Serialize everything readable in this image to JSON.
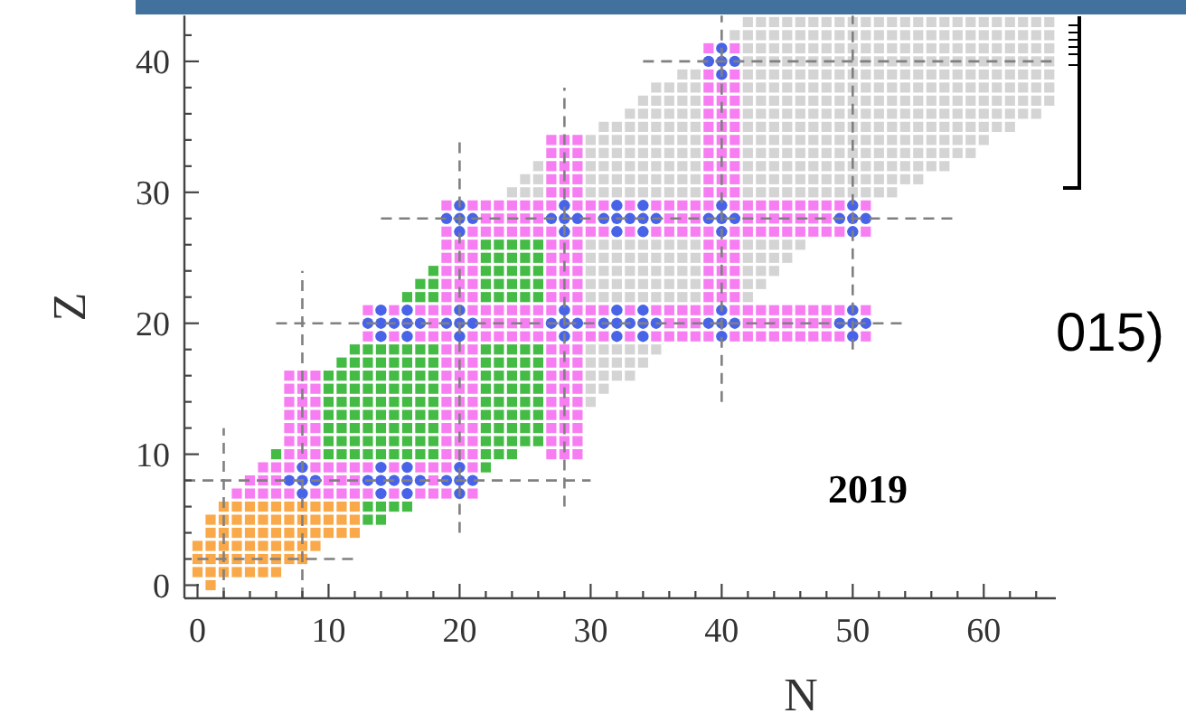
{
  "chart_data": {
    "type": "scatter",
    "xlabel": "N",
    "ylabel": "Z",
    "xlim": [
      -1,
      65.5
    ],
    "ylim": [
      -1,
      43.5
    ],
    "xticks": [
      0,
      {
        "value": 2,
        "label": null
      },
      {
        "value": 4,
        "label": null
      },
      {
        "value": 6,
        "label": null
      },
      {
        "value": 8,
        "label": null
      },
      10,
      {
        "value": 12,
        "label": null
      },
      {
        "value": 14,
        "label": null
      },
      {
        "value": 16,
        "label": null
      },
      {
        "value": 18,
        "label": null
      },
      20,
      {
        "value": 22,
        "label": null
      },
      {
        "value": 24,
        "label": null
      },
      {
        "value": 26,
        "label": null
      },
      {
        "value": 28,
        "label": null
      },
      30,
      {
        "value": 32,
        "label": null
      },
      {
        "value": 34,
        "label": null
      },
      {
        "value": 36,
        "label": null
      },
      {
        "value": 38,
        "label": null
      },
      40,
      {
        "value": 42,
        "label": null
      },
      {
        "value": 44,
        "label": null
      },
      {
        "value": 46,
        "label": null
      },
      {
        "value": 48,
        "label": null
      },
      50,
      {
        "value": 52,
        "label": null
      },
      {
        "value": 54,
        "label": null
      },
      {
        "value": 56,
        "label": null
      },
      {
        "value": 58,
        "label": null
      },
      60,
      {
        "value": 62,
        "label": null
      },
      {
        "value": 64,
        "label": null
      }
    ],
    "yticks": [
      0,
      {
        "value": 2,
        "label": null
      },
      {
        "value": 4,
        "label": null
      },
      {
        "value": 6,
        "label": null
      },
      {
        "value": 8,
        "label": null
      },
      10,
      {
        "value": 12,
        "label": null
      },
      {
        "value": 14,
        "label": null
      },
      {
        "value": 16,
        "label": null
      },
      {
        "value": 18,
        "label": null
      },
      20,
      {
        "value": 22,
        "label": null
      },
      {
        "value": 24,
        "label": null
      },
      {
        "value": 26,
        "label": null
      },
      {
        "value": 28,
        "label": null
      },
      30,
      {
        "value": 32,
        "label": null
      },
      {
        "value": 34,
        "label": null
      },
      {
        "value": 36,
        "label": null
      },
      {
        "value": 38,
        "label": null
      },
      40,
      {
        "value": 42,
        "label": null
      }
    ],
    "annotations": [
      "2019",
      "015)"
    ],
    "series": [
      {
        "type": "scatter",
        "marker": "square",
        "color": "#d4d4d4",
        "x": [
          30,
          30,
          31,
          30,
          31,
          32,
          33,
          30,
          31,
          32,
          33,
          34,
          30,
          31,
          32,
          33,
          34,
          35,
          30,
          31,
          32,
          33,
          34,
          35,
          36,
          37,
          38,
          42,
          30,
          31,
          32,
          33,
          34,
          35,
          36,
          37,
          38,
          42,
          43,
          30,
          31,
          32,
          33,
          34,
          35,
          36,
          37,
          38,
          42,
          43,
          44,
          30,
          31,
          32,
          33,
          34,
          35,
          36,
          37,
          38,
          42,
          43,
          44,
          45,
          30,
          31,
          32,
          33,
          34,
          35,
          36,
          37,
          38,
          42,
          43,
          44,
          45,
          46,
          24,
          25,
          26,
          30,
          31,
          32,
          33,
          34,
          35,
          36,
          37,
          38,
          42,
          43,
          44,
          45,
          46,
          47,
          48,
          49,
          50,
          51,
          52,
          53,
          25,
          26,
          30,
          31,
          32,
          33,
          34,
          35,
          36,
          37,
          38,
          42,
          43,
          44,
          45,
          46,
          47,
          48,
          49,
          50,
          51,
          52,
          53,
          54,
          55,
          26,
          30,
          31,
          32,
          33,
          34,
          35,
          36,
          37,
          38,
          42,
          43,
          44,
          45,
          46,
          47,
          48,
          49,
          50,
          51,
          52,
          53,
          54,
          55,
          56,
          57,
          30,
          31,
          32,
          33,
          34,
          35,
          36,
          37,
          38,
          42,
          43,
          44,
          45,
          46,
          47,
          48,
          49,
          50,
          51,
          52,
          53,
          54,
          55,
          56,
          57,
          58,
          59,
          30,
          31,
          32,
          33,
          34,
          35,
          36,
          37,
          38,
          42,
          43,
          44,
          45,
          46,
          47,
          48,
          49,
          50,
          51,
          52,
          53,
          54,
          55,
          56,
          57,
          58,
          59,
          60,
          31,
          32,
          33,
          34,
          35,
          36,
          37,
          38,
          42,
          43,
          44,
          45,
          46,
          47,
          48,
          49,
          50,
          51,
          52,
          53,
          54,
          55,
          56,
          57,
          58,
          59,
          60,
          61,
          62,
          33,
          34,
          35,
          36,
          37,
          38,
          42,
          43,
          44,
          45,
          46,
          47,
          48,
          49,
          50,
          51,
          52,
          53,
          54,
          55,
          56,
          57,
          58,
          59,
          60,
          61,
          62,
          63,
          64,
          34,
          35,
          36,
          37,
          38,
          42,
          43,
          44,
          45,
          46,
          47,
          48,
          49,
          50,
          51,
          52,
          53,
          54,
          55,
          56,
          57,
          58,
          59,
          60,
          61,
          62,
          63,
          64,
          65,
          35,
          36,
          37,
          38,
          42,
          43,
          44,
          45,
          46,
          47,
          48,
          49,
          50,
          51,
          52,
          53,
          54,
          55,
          56,
          57,
          58,
          59,
          60,
          61,
          62,
          63,
          64,
          65,
          37,
          38,
          42,
          43,
          44,
          45,
          46,
          47,
          48,
          49,
          50,
          51,
          52,
          53,
          54,
          55,
          56,
          57,
          58,
          59,
          60,
          61,
          62,
          63,
          64,
          65,
          42,
          43,
          44,
          45,
          46,
          47,
          48,
          49,
          50,
          51,
          52,
          53,
          54,
          55,
          56,
          57,
          58,
          59,
          60,
          61,
          62,
          63,
          64,
          65,
          42,
          43,
          44,
          45,
          46,
          47,
          48,
          49,
          50,
          51,
          52,
          53,
          54,
          55,
          56,
          57,
          58,
          59,
          60,
          61,
          62,
          63,
          64,
          65,
          41,
          42,
          43,
          44,
          45,
          46,
          47,
          48,
          49,
          50,
          51,
          52,
          53,
          54,
          55,
          56,
          57,
          58,
          59,
          60,
          61,
          62,
          63,
          64,
          65,
          42,
          43,
          44,
          45,
          46,
          47,
          48,
          49,
          50,
          51,
          52,
          53,
          54,
          55,
          56,
          57,
          58,
          59,
          60,
          61,
          62,
          63,
          64,
          65
        ],
        "values": [
          14,
          15,
          15,
          16,
          16,
          16,
          16,
          17,
          17,
          17,
          17,
          17,
          18,
          18,
          18,
          18,
          18,
          18,
          22,
          22,
          22,
          22,
          22,
          22,
          22,
          22,
          22,
          22,
          23,
          23,
          23,
          23,
          23,
          23,
          23,
          23,
          23,
          23,
          23,
          24,
          24,
          24,
          24,
          24,
          24,
          24,
          24,
          24,
          24,
          24,
          24,
          25,
          25,
          25,
          25,
          25,
          25,
          25,
          25,
          25,
          25,
          25,
          25,
          25,
          26,
          26,
          26,
          26,
          26,
          26,
          26,
          26,
          26,
          26,
          26,
          26,
          26,
          26,
          30,
          30,
          30,
          30,
          30,
          30,
          30,
          30,
          30,
          30,
          30,
          30,
          30,
          30,
          30,
          30,
          30,
          30,
          30,
          30,
          30,
          30,
          30,
          30,
          31,
          31,
          31,
          31,
          31,
          31,
          31,
          31,
          31,
          31,
          31,
          31,
          31,
          31,
          31,
          31,
          31,
          31,
          31,
          31,
          31,
          31,
          31,
          31,
          31,
          32,
          32,
          32,
          32,
          32,
          32,
          32,
          32,
          32,
          32,
          32,
          32,
          32,
          32,
          32,
          32,
          32,
          32,
          32,
          32,
          32,
          32,
          32,
          32,
          32,
          32,
          33,
          33,
          33,
          33,
          33,
          33,
          33,
          33,
          33,
          33,
          33,
          33,
          33,
          33,
          33,
          33,
          33,
          33,
          33,
          33,
          33,
          33,
          33,
          33,
          33,
          33,
          33,
          34,
          34,
          34,
          34,
          34,
          34,
          34,
          34,
          34,
          34,
          34,
          34,
          34,
          34,
          34,
          34,
          34,
          34,
          34,
          34,
          34,
          34,
          34,
          34,
          34,
          34,
          34,
          34,
          35,
          35,
          35,
          35,
          35,
          35,
          35,
          35,
          35,
          35,
          35,
          35,
          35,
          35,
          35,
          35,
          35,
          35,
          35,
          35,
          35,
          35,
          35,
          35,
          35,
          35,
          35,
          35,
          35,
          36,
          36,
          36,
          36,
          36,
          36,
          36,
          36,
          36,
          36,
          36,
          36,
          36,
          36,
          36,
          36,
          36,
          36,
          36,
          36,
          36,
          36,
          36,
          36,
          36,
          36,
          36,
          36,
          36,
          37,
          37,
          37,
          37,
          37,
          37,
          37,
          37,
          37,
          37,
          37,
          37,
          37,
          37,
          37,
          37,
          37,
          37,
          37,
          37,
          37,
          37,
          37,
          37,
          37,
          37,
          37,
          37,
          37,
          38,
          38,
          38,
          38,
          38,
          38,
          38,
          38,
          38,
          38,
          38,
          38,
          38,
          38,
          38,
          38,
          38,
          38,
          38,
          38,
          38,
          38,
          38,
          38,
          38,
          38,
          38,
          38,
          39,
          39,
          39,
          39,
          39,
          39,
          39,
          39,
          39,
          39,
          39,
          39,
          39,
          39,
          39,
          39,
          39,
          39,
          39,
          39,
          39,
          39,
          39,
          39,
          39,
          39,
          40,
          40,
          40,
          40,
          40,
          40,
          40,
          40,
          40,
          40,
          40,
          40,
          40,
          40,
          40,
          40,
          40,
          40,
          40,
          40,
          40,
          40,
          40,
          40,
          41,
          41,
          41,
          41,
          41,
          41,
          41,
          41,
          41,
          41,
          41,
          41,
          41,
          41,
          41,
          41,
          41,
          41,
          41,
          41,
          41,
          41,
          41,
          41,
          42,
          42,
          42,
          42,
          42,
          42,
          42,
          42,
          42,
          42,
          42,
          42,
          42,
          42,
          42,
          42,
          42,
          42,
          42,
          42,
          42,
          42,
          42,
          42,
          42,
          43,
          43,
          43,
          43,
          43,
          43,
          43,
          43,
          43,
          43,
          43,
          43,
          43,
          43,
          43,
          43,
          43,
          43,
          43,
          43,
          43,
          43,
          43,
          43
        ]
      },
      {
        "type": "scatter",
        "marker": "square",
        "color": "#44bb44",
        "x": [
          13,
          14,
          13,
          14,
          15,
          16,
          22,
          6,
          10,
          11,
          12,
          13,
          14,
          15,
          16,
          17,
          18,
          22,
          23,
          24,
          10,
          11,
          12,
          13,
          14,
          15,
          16,
          17,
          18,
          22,
          23,
          24,
          25,
          26,
          10,
          11,
          12,
          13,
          14,
          15,
          16,
          17,
          18,
          22,
          23,
          24,
          25,
          26,
          10,
          11,
          12,
          13,
          14,
          15,
          16,
          17,
          18,
          22,
          23,
          24,
          25,
          26,
          10,
          11,
          12,
          13,
          14,
          15,
          16,
          17,
          18,
          22,
          23,
          24,
          25,
          26,
          10,
          11,
          12,
          13,
          14,
          15,
          16,
          17,
          18,
          22,
          23,
          24,
          25,
          26,
          10,
          11,
          12,
          13,
          14,
          15,
          16,
          17,
          18,
          22,
          23,
          24,
          25,
          26,
          11,
          12,
          13,
          14,
          15,
          16,
          17,
          18,
          22,
          23,
          24,
          25,
          26,
          12,
          13,
          14,
          15,
          16,
          17,
          18,
          22,
          23,
          24,
          25,
          26,
          16,
          17,
          18,
          22,
          23,
          24,
          25,
          26,
          17,
          18,
          22,
          23,
          24,
          25,
          26,
          18,
          22,
          23,
          24,
          25,
          26,
          22,
          23,
          24,
          25,
          26,
          22,
          23,
          24,
          25,
          26
        ],
        "values": [
          5,
          5,
          6,
          6,
          6,
          6,
          9,
          10,
          10,
          10,
          10,
          10,
          10,
          10,
          10,
          10,
          10,
          10,
          10,
          10,
          11,
          11,
          11,
          11,
          11,
          11,
          11,
          11,
          11,
          11,
          11,
          11,
          11,
          11,
          12,
          12,
          12,
          12,
          12,
          12,
          12,
          12,
          12,
          12,
          12,
          12,
          12,
          12,
          13,
          13,
          13,
          13,
          13,
          13,
          13,
          13,
          13,
          13,
          13,
          13,
          13,
          13,
          14,
          14,
          14,
          14,
          14,
          14,
          14,
          14,
          14,
          14,
          14,
          14,
          14,
          14,
          15,
          15,
          15,
          15,
          15,
          15,
          15,
          15,
          15,
          15,
          15,
          15,
          15,
          15,
          16,
          16,
          16,
          16,
          16,
          16,
          16,
          16,
          16,
          16,
          16,
          16,
          16,
          16,
          17,
          17,
          17,
          17,
          17,
          17,
          17,
          17,
          17,
          17,
          17,
          17,
          17,
          18,
          18,
          18,
          18,
          18,
          18,
          18,
          18,
          18,
          18,
          18,
          18,
          22,
          22,
          22,
          22,
          22,
          22,
          22,
          22,
          23,
          23,
          23,
          23,
          23,
          23,
          23,
          24,
          24,
          24,
          24,
          24,
          24,
          25,
          25,
          25,
          25,
          25,
          26,
          26,
          26,
          26,
          26
        ]
      },
      {
        "type": "scatter",
        "marker": "square",
        "color": "#f9a84a",
        "x": [
          1,
          0,
          1,
          2,
          3,
          4,
          5,
          6,
          0,
          1,
          2,
          3,
          4,
          5,
          6,
          7,
          8,
          0,
          1,
          2,
          3,
          4,
          5,
          6,
          7,
          8,
          9,
          1,
          2,
          3,
          4,
          5,
          6,
          7,
          8,
          9,
          10,
          11,
          12,
          1,
          2,
          3,
          4,
          5,
          6,
          7,
          8,
          9,
          10,
          11,
          12,
          2,
          3,
          4,
          5,
          6,
          7,
          8,
          9,
          10,
          11,
          12
        ],
        "values": [
          0,
          1,
          1,
          1,
          1,
          1,
          1,
          1,
          2,
          2,
          2,
          2,
          2,
          2,
          2,
          2,
          2,
          3,
          3,
          3,
          3,
          3,
          3,
          3,
          3,
          3,
          3,
          4,
          4,
          4,
          4,
          4,
          4,
          4,
          4,
          4,
          4,
          4,
          4,
          5,
          5,
          5,
          5,
          5,
          5,
          5,
          5,
          5,
          5,
          5,
          5,
          6,
          6,
          6,
          6,
          6,
          6,
          6,
          6,
          6,
          6,
          6
        ]
      },
      {
        "type": "scatter",
        "marker": "square",
        "color": "#f77ef2",
        "x": [
          3,
          4,
          5,
          6,
          7,
          9,
          10,
          11,
          12,
          13,
          15,
          17,
          18,
          19,
          21,
          4,
          5,
          6,
          10,
          11,
          12,
          18,
          5,
          6,
          7,
          9,
          10,
          11,
          12,
          13,
          15,
          17,
          18,
          19,
          21,
          7,
          8,
          9,
          19,
          20,
          21,
          27,
          28,
          29,
          7,
          8,
          9,
          19,
          20,
          21,
          27,
          28,
          29,
          7,
          8,
          9,
          19,
          20,
          21,
          27,
          28,
          29,
          7,
          8,
          9,
          19,
          20,
          21,
          27,
          28,
          29,
          7,
          8,
          9,
          19,
          20,
          21,
          27,
          28,
          29,
          7,
          8,
          9,
          19,
          20,
          21,
          27,
          28,
          29,
          7,
          8,
          9,
          19,
          20,
          21,
          27,
          28,
          29,
          19,
          20,
          21,
          27,
          28,
          29,
          19,
          20,
          21,
          27,
          28,
          29,
          13,
          15,
          17,
          18,
          19,
          21,
          22,
          23,
          24,
          25,
          26,
          27,
          29,
          30,
          31,
          33,
          35,
          36,
          37,
          38,
          39,
          41,
          42,
          43,
          44,
          45,
          46,
          47,
          48,
          49,
          51,
          18,
          22,
          23,
          24,
          25,
          26,
          30,
          36,
          37,
          38,
          42,
          43,
          44,
          45,
          46,
          47,
          48,
          13,
          15,
          17,
          18,
          19,
          21,
          22,
          23,
          24,
          25,
          26,
          27,
          29,
          30,
          31,
          33,
          35,
          36,
          37,
          38,
          39,
          41,
          42,
          43,
          44,
          45,
          46,
          47,
          48,
          49,
          51,
          19,
          20,
          21,
          27,
          28,
          29,
          39,
          40,
          41,
          19,
          20,
          21,
          27,
          28,
          29,
          39,
          40,
          41,
          19,
          20,
          21,
          27,
          28,
          29,
          39,
          40,
          41,
          19,
          20,
          21,
          27,
          28,
          29,
          39,
          40,
          41,
          19,
          20,
          21,
          27,
          28,
          29,
          39,
          40,
          41,
          19,
          21,
          22,
          23,
          24,
          25,
          26,
          27,
          29,
          30,
          31,
          33,
          35,
          36,
          37,
          38,
          39,
          41,
          42,
          43,
          44,
          45,
          46,
          47,
          48,
          49,
          51,
          22,
          23,
          24,
          25,
          26,
          30,
          36,
          37,
          38,
          42,
          43,
          44,
          45,
          46,
          47,
          48,
          19,
          21,
          22,
          23,
          24,
          25,
          26,
          27,
          29,
          30,
          31,
          33,
          35,
          36,
          37,
          38,
          39,
          41,
          42,
          43,
          44,
          45,
          46,
          47,
          48,
          49,
          51,
          27,
          28,
          29,
          39,
          40,
          41,
          27,
          28,
          29,
          39,
          40,
          41,
          27,
          28,
          29,
          39,
          40,
          41,
          27,
          28,
          29,
          39,
          40,
          41,
          27,
          28,
          29,
          39,
          40,
          41,
          39,
          40,
          41,
          39,
          40,
          41,
          39,
          40,
          41,
          39,
          40,
          41,
          39,
          41,
          39,
          41
        ],
        "values": [
          7,
          7,
          7,
          7,
          7,
          7,
          7,
          7,
          7,
          7,
          7,
          7,
          7,
          7,
          7,
          8,
          8,
          8,
          8,
          8,
          8,
          8,
          9,
          9,
          9,
          9,
          9,
          9,
          9,
          9,
          9,
          9,
          9,
          9,
          9,
          10,
          10,
          10,
          10,
          10,
          10,
          10,
          10,
          10,
          11,
          11,
          11,
          11,
          11,
          11,
          11,
          11,
          11,
          12,
          12,
          12,
          12,
          12,
          12,
          12,
          12,
          12,
          13,
          13,
          13,
          13,
          13,
          13,
          13,
          13,
          13,
          14,
          14,
          14,
          14,
          14,
          14,
          14,
          14,
          14,
          15,
          15,
          15,
          15,
          15,
          15,
          15,
          15,
          15,
          16,
          16,
          16,
          16,
          16,
          16,
          16,
          16,
          16,
          17,
          17,
          17,
          17,
          17,
          17,
          18,
          18,
          18,
          18,
          18,
          18,
          19,
          19,
          19,
          19,
          19,
          19,
          19,
          19,
          19,
          19,
          19,
          19,
          19,
          19,
          19,
          19,
          19,
          19,
          19,
          19,
          19,
          19,
          19,
          19,
          19,
          19,
          19,
          19,
          19,
          19,
          19,
          20,
          20,
          20,
          20,
          20,
          20,
          20,
          20,
          20,
          20,
          20,
          20,
          20,
          20,
          20,
          20,
          20,
          21,
          21,
          21,
          21,
          21,
          21,
          21,
          21,
          21,
          21,
          21,
          21,
          21,
          21,
          21,
          21,
          21,
          21,
          21,
          21,
          21,
          21,
          21,
          21,
          21,
          21,
          21,
          21,
          21,
          21,
          21,
          22,
          22,
          22,
          22,
          22,
          22,
          22,
          22,
          22,
          23,
          23,
          23,
          23,
          23,
          23,
          23,
          23,
          23,
          24,
          24,
          24,
          24,
          24,
          24,
          24,
          24,
          24,
          25,
          25,
          25,
          25,
          25,
          25,
          25,
          25,
          25,
          26,
          26,
          26,
          26,
          26,
          26,
          26,
          26,
          26,
          27,
          27,
          27,
          27,
          27,
          27,
          27,
          27,
          27,
          27,
          27,
          27,
          27,
          27,
          27,
          27,
          27,
          27,
          27,
          27,
          27,
          27,
          27,
          27,
          27,
          27,
          27,
          28,
          28,
          28,
          28,
          28,
          28,
          28,
          28,
          28,
          28,
          28,
          28,
          28,
          28,
          28,
          28,
          29,
          29,
          29,
          29,
          29,
          29,
          29,
          29,
          29,
          29,
          29,
          29,
          29,
          29,
          29,
          29,
          29,
          29,
          29,
          29,
          29,
          29,
          29,
          29,
          29,
          29,
          29,
          30,
          30,
          30,
          30,
          30,
          30,
          31,
          31,
          31,
          31,
          31,
          31,
          32,
          32,
          32,
          32,
          32,
          32,
          33,
          33,
          33,
          33,
          33,
          33,
          34,
          34,
          34,
          34,
          34,
          34,
          35,
          35,
          35,
          36,
          36,
          36,
          37,
          37,
          37,
          38,
          38,
          38,
          39,
          39,
          41,
          41
        ]
      },
      {
        "type": "scatter",
        "marker": "circle",
        "color": "#4863e8",
        "x": [
          8,
          14,
          16,
          20,
          7,
          8,
          9,
          13,
          14,
          15,
          16,
          17,
          19,
          20,
          21,
          8,
          14,
          16,
          20,
          14,
          16,
          20,
          28,
          32,
          34,
          40,
          50,
          13,
          14,
          15,
          16,
          17,
          19,
          20,
          21,
          27,
          28,
          29,
          31,
          32,
          33,
          34,
          35,
          39,
          40,
          41,
          49,
          50,
          51,
          14,
          16,
          20,
          28,
          32,
          34,
          40,
          50,
          20,
          28,
          32,
          34,
          40,
          50,
          19,
          20,
          21,
          27,
          28,
          29,
          31,
          32,
          33,
          34,
          35,
          39,
          40,
          41,
          49,
          50,
          51,
          20,
          28,
          32,
          34,
          40,
          50,
          40,
          39,
          40,
          41,
          40
        ],
        "values": [
          7,
          7,
          7,
          7,
          8,
          8,
          8,
          8,
          8,
          8,
          8,
          8,
          8,
          8,
          8,
          9,
          9,
          9,
          9,
          19,
          19,
          19,
          19,
          19,
          19,
          19,
          19,
          20,
          20,
          20,
          20,
          20,
          20,
          20,
          20,
          20,
          20,
          20,
          20,
          20,
          20,
          20,
          20,
          20,
          20,
          20,
          20,
          20,
          20,
          21,
          21,
          21,
          21,
          21,
          21,
          21,
          21,
          27,
          27,
          27,
          27,
          27,
          27,
          28,
          28,
          28,
          28,
          28,
          28,
          28,
          28,
          28,
          28,
          28,
          28,
          28,
          28,
          28,
          28,
          28,
          29,
          29,
          29,
          29,
          29,
          29,
          39,
          40,
          40,
          40,
          41
        ]
      },
      {
        "type": "line",
        "marker": "none",
        "line_style": "dashed",
        "color": "#808080",
        "x": [
          0,
          12
        ],
        "values": [
          2,
          2
        ]
      },
      {
        "type": "line",
        "marker": "none",
        "line_style": "dashed",
        "color": "#808080",
        "x": [
          2,
          2
        ],
        "values": [
          -1,
          12
        ]
      },
      {
        "type": "line",
        "marker": "none",
        "line_style": "dashed",
        "color": "#808080",
        "x": [
          -1,
          30
        ],
        "values": [
          8,
          8
        ]
      },
      {
        "type": "line",
        "marker": "none",
        "line_style": "dashed",
        "color": "#808080",
        "x": [
          8,
          8
        ],
        "values": [
          -1,
          24
        ]
      },
      {
        "type": "line",
        "marker": "none",
        "line_style": "dashed",
        "color": "#808080",
        "x": [
          6,
          54
        ],
        "values": [
          20,
          20
        ]
      },
      {
        "type": "line",
        "marker": "none",
        "line_style": "dashed",
        "color": "#808080",
        "x": [
          20,
          20
        ],
        "values": [
          4,
          34
        ]
      },
      {
        "type": "line",
        "marker": "none",
        "line_style": "dashed",
        "color": "#808080",
        "x": [
          14,
          58
        ],
        "values": [
          28,
          28
        ]
      },
      {
        "type": "line",
        "marker": "none",
        "line_style": "dashed",
        "color": "#808080",
        "x": [
          28,
          28
        ],
        "values": [
          6,
          38
        ]
      },
      {
        "type": "line",
        "marker": "none",
        "line_style": "dashed",
        "color": "#808080",
        "x": [
          34,
          65.5
        ],
        "values": [
          40,
          40
        ]
      },
      {
        "type": "line",
        "marker": "none",
        "line_style": "dashed",
        "color": "#808080",
        "x": [
          40,
          40
        ],
        "values": [
          14,
          43.5
        ]
      },
      {
        "type": "line",
        "marker": "none",
        "line_style": "dashed",
        "color": "#808080",
        "x": [
          50,
          50
        ],
        "values": [
          18,
          43.5
        ]
      }
    ]
  }
}
